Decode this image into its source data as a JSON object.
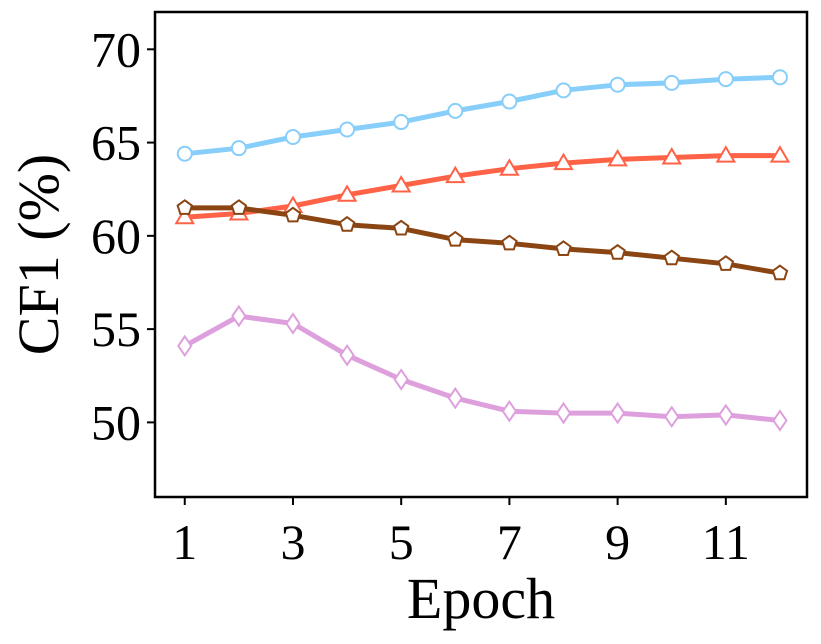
{
  "chart_data": {
    "type": "line",
    "xlabel": "Epoch",
    "ylabel": "CF1 (%)",
    "xlim": [
      0.45,
      12.5
    ],
    "ylim": [
      46,
      72
    ],
    "xticks": [
      1,
      3,
      5,
      7,
      9,
      11
    ],
    "yticks": [
      50,
      55,
      60,
      65,
      70
    ],
    "x": [
      1,
      2,
      3,
      4,
      5,
      6,
      7,
      8,
      9,
      10,
      11,
      12
    ],
    "grid": false,
    "legend": "none",
    "series": [
      {
        "color": "#87CEFA",
        "marker": "circle",
        "values": [
          64.4,
          64.7,
          65.3,
          65.7,
          66.1,
          66.7,
          67.2,
          67.8,
          68.1,
          68.2,
          68.4,
          68.5
        ]
      },
      {
        "color": "#FF6347",
        "marker": "triangle",
        "values": [
          61.0,
          61.2,
          61.6,
          62.2,
          62.7,
          63.2,
          63.6,
          63.9,
          64.1,
          64.2,
          64.3,
          64.3
        ]
      },
      {
        "color": "#8B4513",
        "marker": "pentagon",
        "values": [
          61.5,
          61.5,
          61.1,
          60.6,
          60.4,
          59.8,
          59.6,
          59.3,
          59.1,
          58.8,
          58.5,
          58.0
        ]
      },
      {
        "color": "#DDA0DD",
        "marker": "diamond",
        "values": [
          54.1,
          55.7,
          55.3,
          53.6,
          52.3,
          51.3,
          50.6,
          50.5,
          50.5,
          50.3,
          50.4,
          50.1
        ]
      }
    ]
  }
}
